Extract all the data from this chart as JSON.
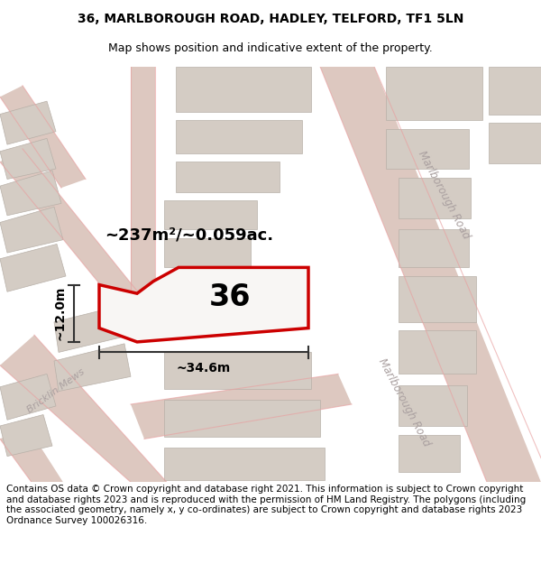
{
  "title_line1": "36, MARLBOROUGH ROAD, HADLEY, TELFORD, TF1 5LN",
  "title_line2": "Map shows position and indicative extent of the property.",
  "footer_text": "Contains OS data © Crown copyright and database right 2021. This information is subject to Crown copyright and database rights 2023 and is reproduced with the permission of HM Land Registry. The polygons (including the associated geometry, namely x, y co-ordinates) are subject to Crown copyright and database rights 2023 Ordnance Survey 100026316.",
  "area_label": "~237m²/~0.059ac.",
  "number_label": "36",
  "width_label": "~34.6m",
  "height_label": "~12.0m",
  "map_bg": "#f2f0ee",
  "road_color": "#e8a0a0",
  "building_color": "#d4ccc4",
  "highlight_color": "#cc0000",
  "title_fontsize": 10,
  "subtitle_fontsize": 9,
  "footer_fontsize": 7.5
}
